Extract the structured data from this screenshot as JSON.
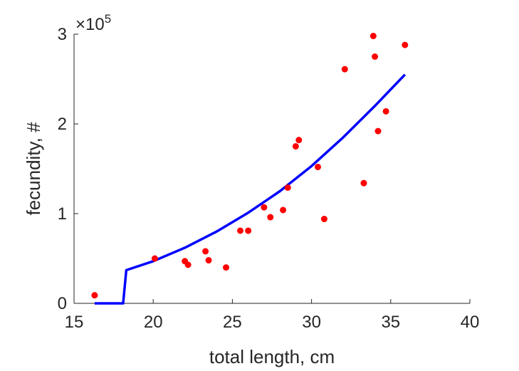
{
  "chart_data": {
    "type": "scatter",
    "xlabel": "total length, cm",
    "ylabel": "fecundity, #",
    "xlim": [
      15,
      40
    ],
    "ylim": [
      0,
      300000
    ],
    "xticks": [
      15,
      20,
      25,
      30,
      35,
      40
    ],
    "yticks": [
      0,
      100000,
      200000,
      300000
    ],
    "ytick_labels": [
      "0",
      "1",
      "2",
      "3"
    ],
    "y_exponent_prefix": "×10",
    "y_exponent": "5",
    "grid": false,
    "points_color": "#ff0000",
    "line_color": "#0000ff",
    "points": {
      "x": [
        16.3,
        20.1,
        22.0,
        22.2,
        23.3,
        23.5,
        24.6,
        25.5,
        26.0,
        27.0,
        27.4,
        28.2,
        28.5,
        29.0,
        29.2,
        30.4,
        30.8,
        32.1,
        33.3,
        33.9,
        34.0,
        34.2,
        34.7,
        35.9
      ],
      "y": [
        9000,
        50000,
        47000,
        43000,
        58000,
        48000,
        40000,
        81000,
        81000,
        107000,
        96000,
        104000,
        129000,
        175000,
        182000,
        152000,
        94000,
        261000,
        134000,
        298000,
        275000,
        192000,
        214000,
        288000
      ]
    },
    "line": {
      "x": [
        16.3,
        18.1,
        18.3,
        20,
        22,
        24,
        26,
        28,
        30,
        32,
        34,
        35.9
      ],
      "y": [
        0,
        0,
        37000,
        47000,
        62000,
        80000,
        101000,
        125000,
        153000,
        185000,
        220000,
        255000
      ]
    }
  }
}
